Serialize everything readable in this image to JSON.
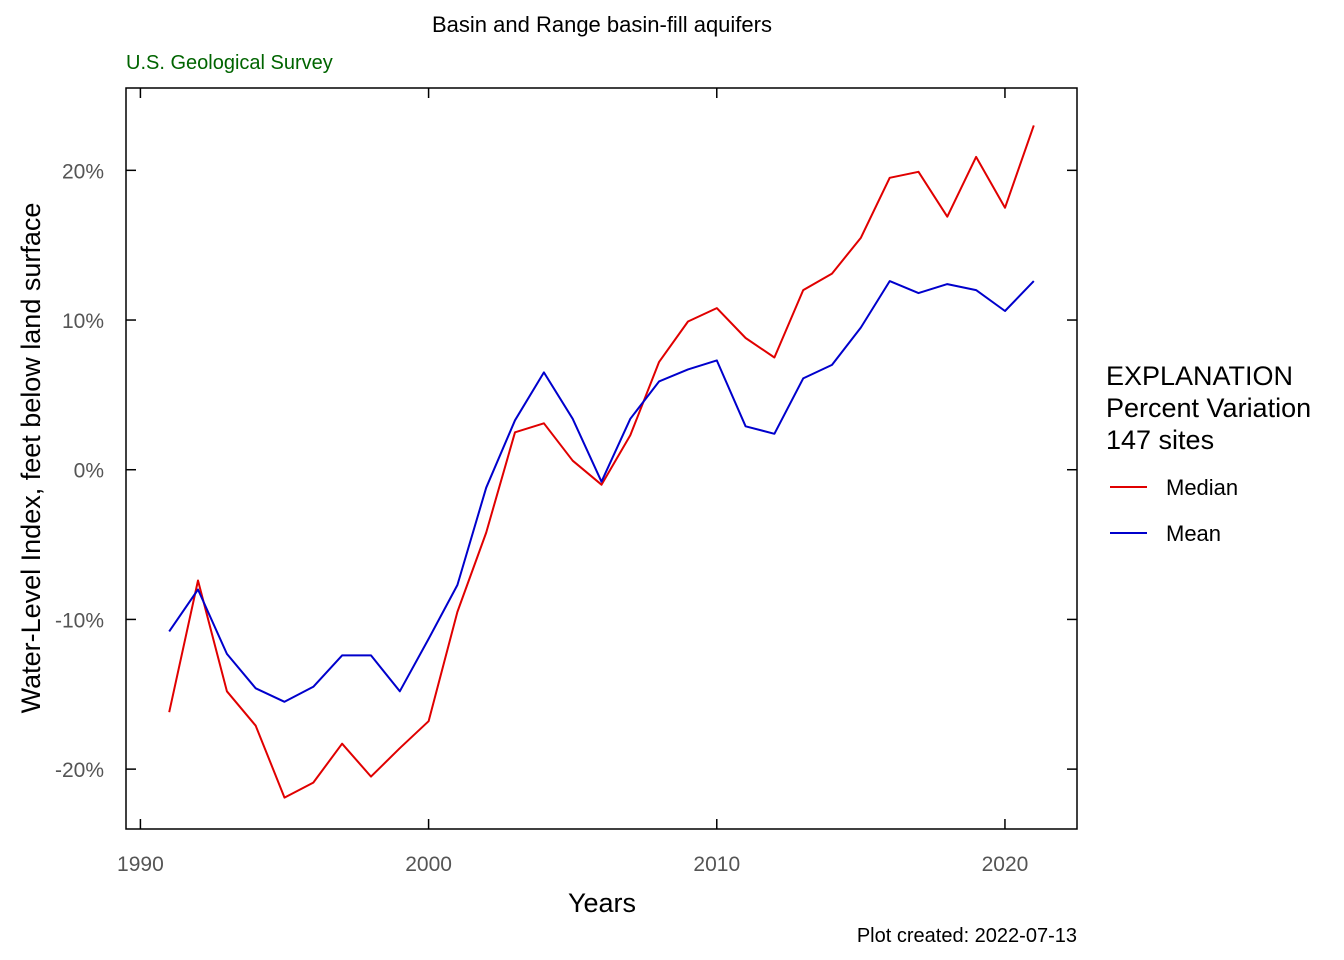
{
  "chart_data": {
    "type": "line",
    "title": "Basin and Range basin-fill aquifers",
    "subtitle": "U.S. Geological Survey",
    "xlabel": "Years",
    "ylabel": "Water-Level Index, feet below land surface",
    "footnote": "Plot created: 2022-07-13",
    "xlim": [
      1989.5,
      2022.5
    ],
    "ylim": [
      -24.0,
      25.5
    ],
    "xticks": [
      1990,
      2000,
      2010,
      2020
    ],
    "xtick_labels": [
      "1990",
      "2000",
      "2010",
      "2020"
    ],
    "yticks": [
      -20,
      -10,
      0,
      10,
      20
    ],
    "ytick_labels": [
      "-20%",
      "-10%",
      "0%",
      "10%",
      "20%"
    ],
    "grid": false,
    "legend": {
      "placement": "right",
      "title_lines": [
        "EXPLANATION",
        "Percent Variation",
        "147 sites"
      ]
    },
    "x": [
      1991,
      1992,
      1993,
      1994,
      1995,
      1996,
      1997,
      1998,
      1999,
      2000,
      2001,
      2002,
      2003,
      2004,
      2005,
      2006,
      2007,
      2008,
      2009,
      2010,
      2011,
      2012,
      2013,
      2014,
      2015,
      2016,
      2017,
      2018,
      2019,
      2020,
      2021
    ],
    "series": [
      {
        "name": "Median",
        "color": "#e00000",
        "values": [
          -16.2,
          -7.4,
          -14.8,
          -17.1,
          -21.9,
          -20.9,
          -18.3,
          -20.5,
          -18.6,
          -16.8,
          -9.5,
          -4.2,
          2.5,
          3.1,
          0.6,
          -1.0,
          2.3,
          7.2,
          9.9,
          10.8,
          8.8,
          7.5,
          12.0,
          13.1,
          15.5,
          19.5,
          19.9,
          16.9,
          20.9,
          17.5,
          23.0
        ]
      },
      {
        "name": "Mean",
        "color": "#0000cc",
        "values": [
          -10.8,
          -8.0,
          -12.3,
          -14.6,
          -15.5,
          -14.5,
          -12.4,
          -12.4,
          -14.8,
          -11.3,
          -7.7,
          -1.2,
          3.3,
          6.5,
          3.4,
          -0.8,
          3.4,
          5.9,
          6.7,
          7.3,
          2.9,
          2.4,
          6.1,
          7.0,
          9.5,
          12.6,
          11.8,
          12.4,
          12.0,
          10.6,
          12.6
        ]
      }
    ]
  }
}
